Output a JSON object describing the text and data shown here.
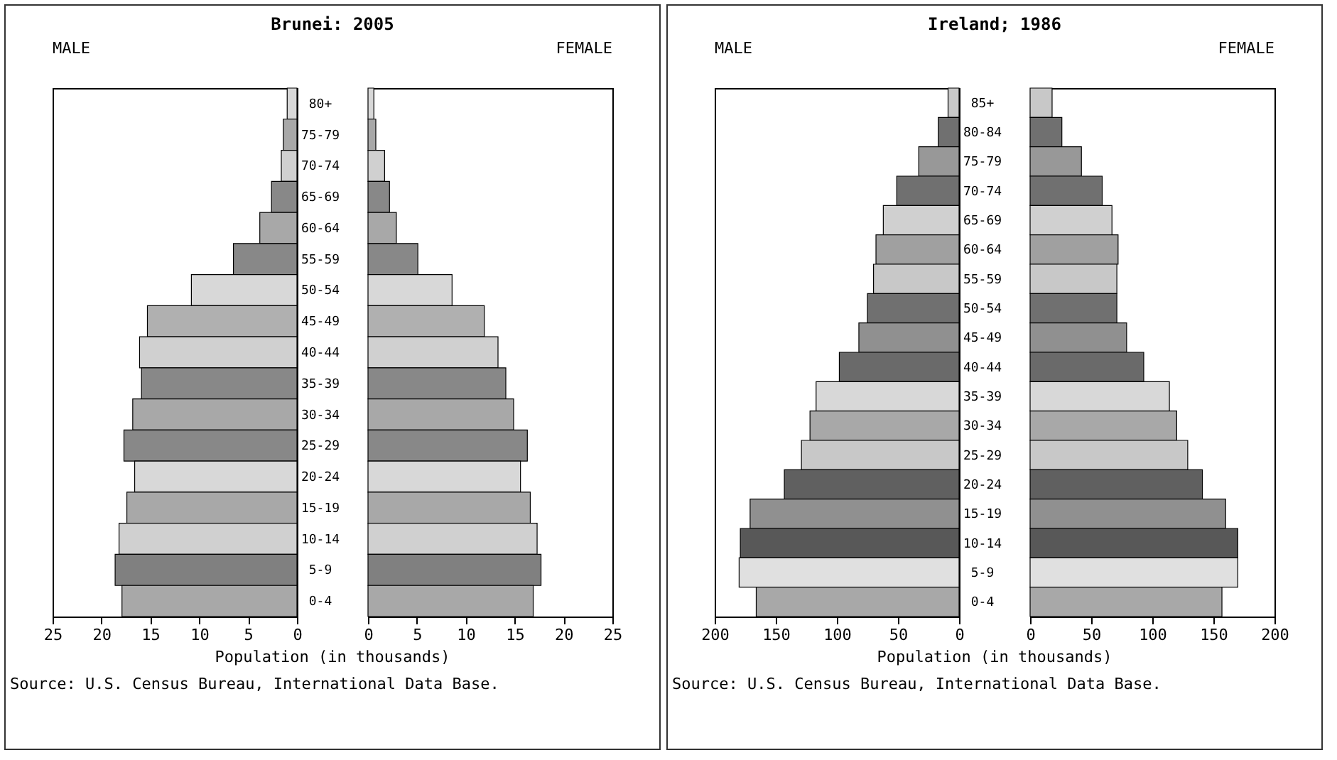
{
  "chart_data": [
    {
      "type": "bar",
      "orientation": "horizontal",
      "title": "Brunei: 2005",
      "xlabel": "Population (in thousands)",
      "annotations": [
        "Source: U.S. Census Bureau, International Data Base."
      ],
      "categories": [
        "80+",
        "75-79",
        "70-74",
        "65-69",
        "60-64",
        "55-59",
        "50-54",
        "45-49",
        "40-44",
        "35-39",
        "30-34",
        "25-29",
        "20-24",
        "15-19",
        "10-14",
        "5-9",
        "0-4"
      ],
      "series": [
        {
          "name": "MALE",
          "values": [
            1.0,
            1.4,
            1.6,
            2.6,
            3.8,
            6.5,
            10.8,
            15.3,
            16.1,
            15.9,
            16.8,
            17.7,
            16.6,
            17.4,
            18.2,
            18.6,
            17.9
          ],
          "colors": [
            "#d8d8d8",
            "#a8a8a8",
            "#d0d0d0",
            "#888888",
            "#a8a8a8",
            "#888888",
            "#d8d8d8",
            "#b0b0b0",
            "#d0d0d0",
            "#888888",
            "#a8a8a8",
            "#888888",
            "#d8d8d8",
            "#a8a8a8",
            "#d0d0d0",
            "#808080",
            "#a8a8a8"
          ]
        }
      ],
      "xlim": [
        25,
        0
      ],
      "xticks": [
        0,
        5,
        10,
        15,
        20,
        25
      ]
    },
    {
      "type": "bar",
      "orientation": "horizontal",
      "categories": [
        null,
        null,
        null,
        null,
        null,
        null,
        null,
        null,
        null,
        null,
        null,
        null,
        null,
        null,
        null,
        null,
        null
      ],
      "series": [
        {
          "name": "FEMALE",
          "values": [
            0.6,
            0.8,
            1.7,
            2.2,
            2.9,
            5.1,
            8.6,
            11.9,
            13.3,
            14.1,
            14.9,
            16.3,
            15.6,
            16.6,
            17.3,
            17.7,
            16.9
          ],
          "colors": [
            "#d8d8d8",
            "#a8a8a8",
            "#d0d0d0",
            "#888888",
            "#a8a8a8",
            "#888888",
            "#d8d8d8",
            "#b0b0b0",
            "#d0d0d0",
            "#888888",
            "#a8a8a8",
            "#888888",
            "#d8d8d8",
            "#a8a8a8",
            "#d0d0d0",
            "#808080",
            "#a8a8a8"
          ]
        }
      ],
      "xlim": [
        0,
        25
      ],
      "xticks": [
        0,
        5,
        10,
        15,
        20,
        25
      ]
    },
    {
      "type": "bar",
      "orientation": "horizontal",
      "title": "Ireland; 1986",
      "xlabel": "Population (in thousands)",
      "annotations": [
        "Source: U.S. Census Bureau, International Data Base."
      ],
      "categories": [
        "85+",
        "80-84",
        "75-79",
        "70-74",
        "65-69",
        "60-64",
        "55-59",
        "50-54",
        "45-49",
        "40-44",
        "35-39",
        "30-34",
        "25-29",
        "20-24",
        "15-19",
        "10-14",
        "5-9",
        "0-4"
      ],
      "series": [
        {
          "name": "MALE",
          "values": [
            9,
            17,
            33,
            51,
            62,
            68,
            70,
            75,
            82,
            98,
            117,
            122,
            129,
            143,
            171,
            179,
            180,
            166
          ],
          "colors": [
            "#c8c8c8",
            "#707070",
            "#989898",
            "#707070",
            "#d0d0d0",
            "#a0a0a0",
            "#c8c8c8",
            "#707070",
            "#909090",
            "#6a6a6a",
            "#d8d8d8",
            "#a8a8a8",
            "#c8c8c8",
            "#606060",
            "#909090",
            "#585858",
            "#e0e0e0",
            "#a8a8a8"
          ]
        }
      ],
      "xlim": [
        200,
        0
      ],
      "xticks": [
        0,
        50,
        100,
        150,
        200
      ]
    },
    {
      "type": "bar",
      "orientation": "horizontal",
      "categories": [
        null,
        null,
        null,
        null,
        null,
        null,
        null,
        null,
        null,
        null,
        null,
        null,
        null,
        null,
        null,
        null,
        null,
        null
      ],
      "series": [
        {
          "name": "FEMALE",
          "values": [
            18,
            26,
            42,
            59,
            67,
            72,
            71,
            71,
            79,
            93,
            114,
            120,
            129,
            141,
            160,
            170,
            170,
            157
          ],
          "colors": [
            "#c8c8c8",
            "#707070",
            "#989898",
            "#707070",
            "#d0d0d0",
            "#a0a0a0",
            "#c8c8c8",
            "#707070",
            "#909090",
            "#6a6a6a",
            "#d8d8d8",
            "#a8a8a8",
            "#c8c8c8",
            "#606060",
            "#909090",
            "#585858",
            "#e0e0e0",
            "#a8a8a8"
          ]
        }
      ],
      "xlim": [
        0,
        200
      ],
      "xticks": [
        0,
        50,
        100,
        150,
        200
      ]
    }
  ]
}
